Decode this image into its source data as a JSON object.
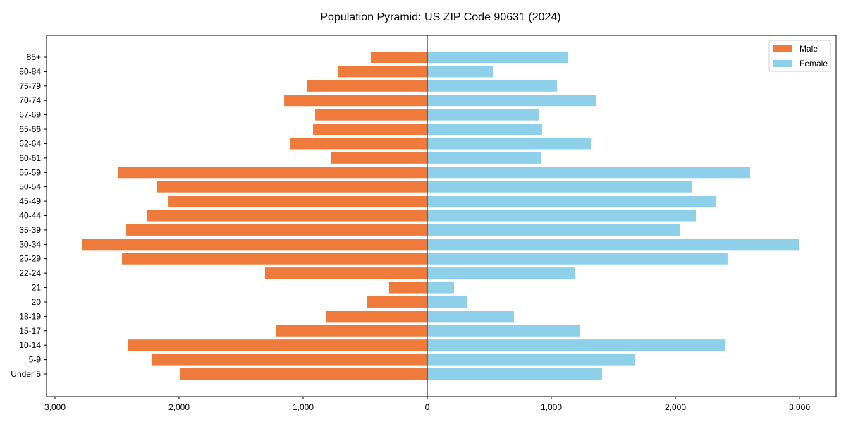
{
  "chart_data": {
    "type": "bar",
    "orientation": "horizontal-pyramid",
    "title": "Population Pyramid: US ZIP Code 90631 (2024)",
    "categories": [
      "85+",
      "80-84",
      "75-79",
      "70-74",
      "67-69",
      "65-66",
      "62-64",
      "60-61",
      "55-59",
      "50-54",
      "45-49",
      "40-44",
      "35-39",
      "30-34",
      "25-29",
      "22-24",
      "21",
      "20",
      "18-19",
      "15-17",
      "10-14",
      "5-9",
      "Under 5"
    ],
    "series": [
      {
        "name": "Male",
        "color": "#ee7b3b",
        "side": "left",
        "values": [
          455,
          716,
          966,
          1153,
          903,
          920,
          1102,
          773,
          2494,
          2182,
          2085,
          2261,
          2426,
          2784,
          2460,
          1307,
          307,
          483,
          818,
          1216,
          2415,
          2222,
          1994
        ]
      },
      {
        "name": "Female",
        "color": "#8ecfea",
        "side": "right",
        "values": [
          1131,
          528,
          1045,
          1364,
          898,
          926,
          1318,
          915,
          2602,
          2131,
          2330,
          2165,
          2034,
          3000,
          2420,
          1193,
          216,
          324,
          699,
          1233,
          2398,
          1676,
          1409
        ]
      }
    ],
    "xlim": [
      -3200,
      3200
    ],
    "xticks": [
      -3000,
      -2000,
      -1000,
      0,
      1000,
      2000,
      3000
    ],
    "xtick_labels": [
      "3,000",
      "2,000",
      "1,000",
      "0",
      "1,000",
      "2,000",
      "3,000"
    ],
    "xlabel": "",
    "ylabel": "",
    "legend": "top-right",
    "grid": false
  }
}
